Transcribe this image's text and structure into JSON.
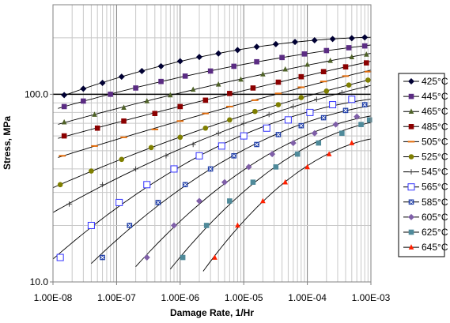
{
  "chart_data": {
    "type": "line",
    "title": "",
    "xlabel": "Damage Rate, 1/Hr",
    "ylabel": "Stress, MPa",
    "xscale": "log",
    "yscale": "log",
    "xlim": [
      1e-08,
      0.001
    ],
    "ylim": [
      10,
      300
    ],
    "x_tick_labels": [
      "1.00E-08",
      "1.00E-07",
      "1.00E-06",
      "1.00E-05",
      "1.00E-04",
      "1.00E-03"
    ],
    "y_tick_labels": [
      "10.0",
      "100.0"
    ],
    "grid": true,
    "legend_position": "right",
    "series": [
      {
        "name": "425°C",
        "color": "#000033",
        "marker": "diamond",
        "fit_from": 1.5e-08,
        "x": [
          1.5e-08,
          3e-08,
          6e-08,
          1.2e-07,
          2.5e-07,
          5e-07,
          1e-06,
          2e-06,
          4e-06,
          8e-06,
          1.6e-05,
          3.2e-05,
          6.4e-05,
          0.00013,
          0.00025,
          0.0005,
          0.0008
        ],
        "y": [
          99,
          107,
          115,
          124,
          133,
          141,
          150,
          158,
          165,
          172,
          179,
          185,
          190,
          194,
          197,
          199,
          201
        ]
      },
      {
        "name": "445°C",
        "color": "#5b2c83",
        "marker": "square",
        "fit_from": 1.2e-08,
        "x": [
          1.5e-08,
          3e-08,
          8e-08,
          2e-07,
          5e-07,
          1.2e-06,
          3e-06,
          7e-06,
          1.6e-05,
          4e-05,
          9e-05,
          0.0002,
          0.00045,
          0.0008
        ],
        "y": [
          86,
          92,
          100,
          108,
          117,
          125,
          133,
          141,
          149,
          157,
          164,
          171,
          177,
          181
        ]
      },
      {
        "name": "465°C",
        "color": "#4f6228",
        "marker": "triangle",
        "fit_from": 1.2e-08,
        "x": [
          1.5e-08,
          4.5e-08,
          1.3e-07,
          3e-07,
          7e-07,
          1.6e-06,
          4e-06,
          9e-06,
          2e-05,
          4.5e-05,
          0.0001,
          0.00023,
          0.0005,
          0.00085
        ],
        "y": [
          71,
          78,
          85,
          92,
          99,
          106,
          113,
          120,
          128,
          136,
          144,
          151,
          158,
          163
        ]
      },
      {
        "name": "485°C",
        "color": "#8b0000",
        "marker": "square",
        "fit_from": 1.2e-08,
        "x": [
          1.5e-08,
          5e-08,
          1.3e-07,
          4e-07,
          1e-06,
          2.5e-06,
          6e-06,
          1.4e-05,
          3.5e-05,
          8e-05,
          0.00018,
          0.0004,
          0.00085
        ],
        "y": [
          60,
          66,
          72,
          79,
          86,
          93,
          101,
          108,
          116,
          124,
          132,
          140,
          147
        ]
      },
      {
        "name": "505°C",
        "color": "#e36c0a",
        "marker": "dash",
        "fit_from": 1.2e-08,
        "x": [
          1.4e-08,
          4.5e-08,
          1.3e-07,
          4e-07,
          1e-06,
          2.5e-06,
          6e-06,
          1.5e-05,
          3.5e-05,
          8e-05,
          0.00018,
          0.0004,
          0.0009
        ],
        "y": [
          47,
          53,
          59,
          65,
          72,
          79,
          86,
          93,
          101,
          109,
          117,
          125,
          132
        ]
      },
      {
        "name": "525°C",
        "color": "#7f7f00",
        "marker": "circle",
        "fit_from": 1e-08,
        "x": [
          1.3e-08,
          4e-08,
          1.2e-07,
          3.5e-07,
          1e-06,
          2.5e-06,
          6e-06,
          1.5e-05,
          3.5e-05,
          8e-05,
          0.0002,
          0.00045,
          0.0009
        ],
        "y": [
          33,
          39,
          45,
          52,
          59,
          66,
          73,
          81,
          88,
          96,
          104,
          112,
          119
        ]
      },
      {
        "name": "545°C",
        "color": "#404040",
        "marker": "plus",
        "fit_from": 1e-08,
        "x": [
          1.8e-08,
          6e-08,
          2e-07,
          6e-07,
          1.6e-06,
          4e-06,
          1e-05,
          2.5e-05,
          6e-05,
          0.00014,
          0.00035,
          0.0008
        ],
        "y": [
          26,
          33,
          40,
          47,
          54,
          62,
          70,
          78,
          86,
          94,
          102,
          109
        ]
      },
      {
        "name": "565°C",
        "color": "#3333ff",
        "marker": "square-open",
        "fit_from": 1e-08,
        "x": [
          1.3e-08,
          4e-08,
          1.1e-07,
          3e-07,
          8e-07,
          2e-06,
          4.5e-06,
          1e-05,
          2.3e-05,
          5e-05,
          0.00011,
          0.00025,
          0.0005
        ],
        "y": [
          13.5,
          20,
          26.5,
          33,
          40,
          47,
          53,
          60,
          66,
          73,
          80,
          88,
          94
        ]
      },
      {
        "name": "585°C",
        "color": "#1f3ea8",
        "marker": "x-square",
        "fit_from": 4e-08,
        "x": [
          6e-08,
          1.6e-07,
          4.5e-07,
          1.2e-06,
          3e-06,
          7e-06,
          1.6e-05,
          3.5e-05,
          8e-05,
          0.00018,
          0.0004,
          0.0008
        ],
        "y": [
          13.5,
          20,
          26.5,
          33,
          40,
          47,
          54,
          61,
          68,
          75,
          82,
          88
        ]
      },
      {
        "name": "605°C",
        "color": "#7f5fa8",
        "marker": "diamond",
        "fit_from": 2e-07,
        "x": [
          3e-07,
          8e-07,
          2e-06,
          5e-06,
          1.2e-05,
          2.8e-05,
          6e-05,
          0.00013,
          0.00028,
          0.0006
        ],
        "y": [
          13.5,
          20,
          27,
          34,
          41,
          48,
          55,
          62,
          69,
          76
        ]
      },
      {
        "name": "625°C",
        "color": "#4f8a9a",
        "marker": "square",
        "fit_from": 7e-07,
        "x": [
          1.1e-06,
          2.6e-06,
          6e-06,
          1.4e-05,
          3.2e-05,
          7e-05,
          0.00015,
          0.00035,
          0.0007,
          0.00095
        ],
        "y": [
          13.5,
          20,
          27,
          34,
          41,
          48,
          55,
          62,
          69,
          73
        ]
      },
      {
        "name": "645°C",
        "color": "#ff2000",
        "marker": "triangle",
        "fit_from": 2.3e-06,
        "x": [
          3.5e-06,
          8e-06,
          2e-05,
          4.5e-05,
          0.0001,
          0.00022,
          0.0005
        ],
        "y": [
          13.5,
          20,
          27,
          34,
          41,
          48,
          55
        ]
      }
    ]
  }
}
